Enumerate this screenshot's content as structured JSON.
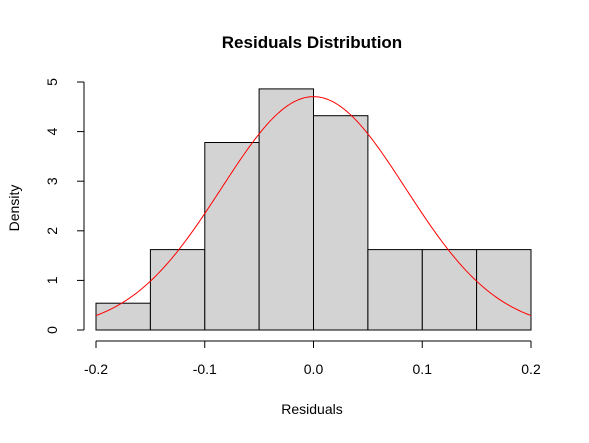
{
  "chart_data": {
    "type": "bar",
    "subtype": "histogram",
    "title": "Residuals Distribution",
    "xlabel": "Residuals",
    "ylabel": "Density",
    "xlim": [
      -0.2,
      0.2
    ],
    "ylim": [
      0,
      5
    ],
    "x_ticks": [
      "-0.2",
      "-0.1",
      "0.0",
      "0.1",
      "0.2"
    ],
    "y_ticks": [
      "0",
      "1",
      "2",
      "3",
      "4",
      "5"
    ],
    "bins": [
      {
        "from": -0.2,
        "to": -0.15,
        "density": 0.54
      },
      {
        "from": -0.15,
        "to": -0.1,
        "density": 1.62
      },
      {
        "from": -0.1,
        "to": -0.05,
        "density": 3.78
      },
      {
        "from": -0.05,
        "to": 0.0,
        "density": 4.86
      },
      {
        "from": 0.0,
        "to": 0.05,
        "density": 4.32
      },
      {
        "from": 0.05,
        "to": 0.1,
        "density": 1.62
      },
      {
        "from": 0.1,
        "to": 0.15,
        "density": 1.62
      },
      {
        "from": 0.15,
        "to": 0.2,
        "density": 1.62
      }
    ],
    "bar_color": "#d3d3d3",
    "overlay": {
      "type": "normal-density-curve",
      "mean": 0.0,
      "sd": 0.0848,
      "color": "#ff0000"
    },
    "grid": false,
    "legend": "none"
  }
}
